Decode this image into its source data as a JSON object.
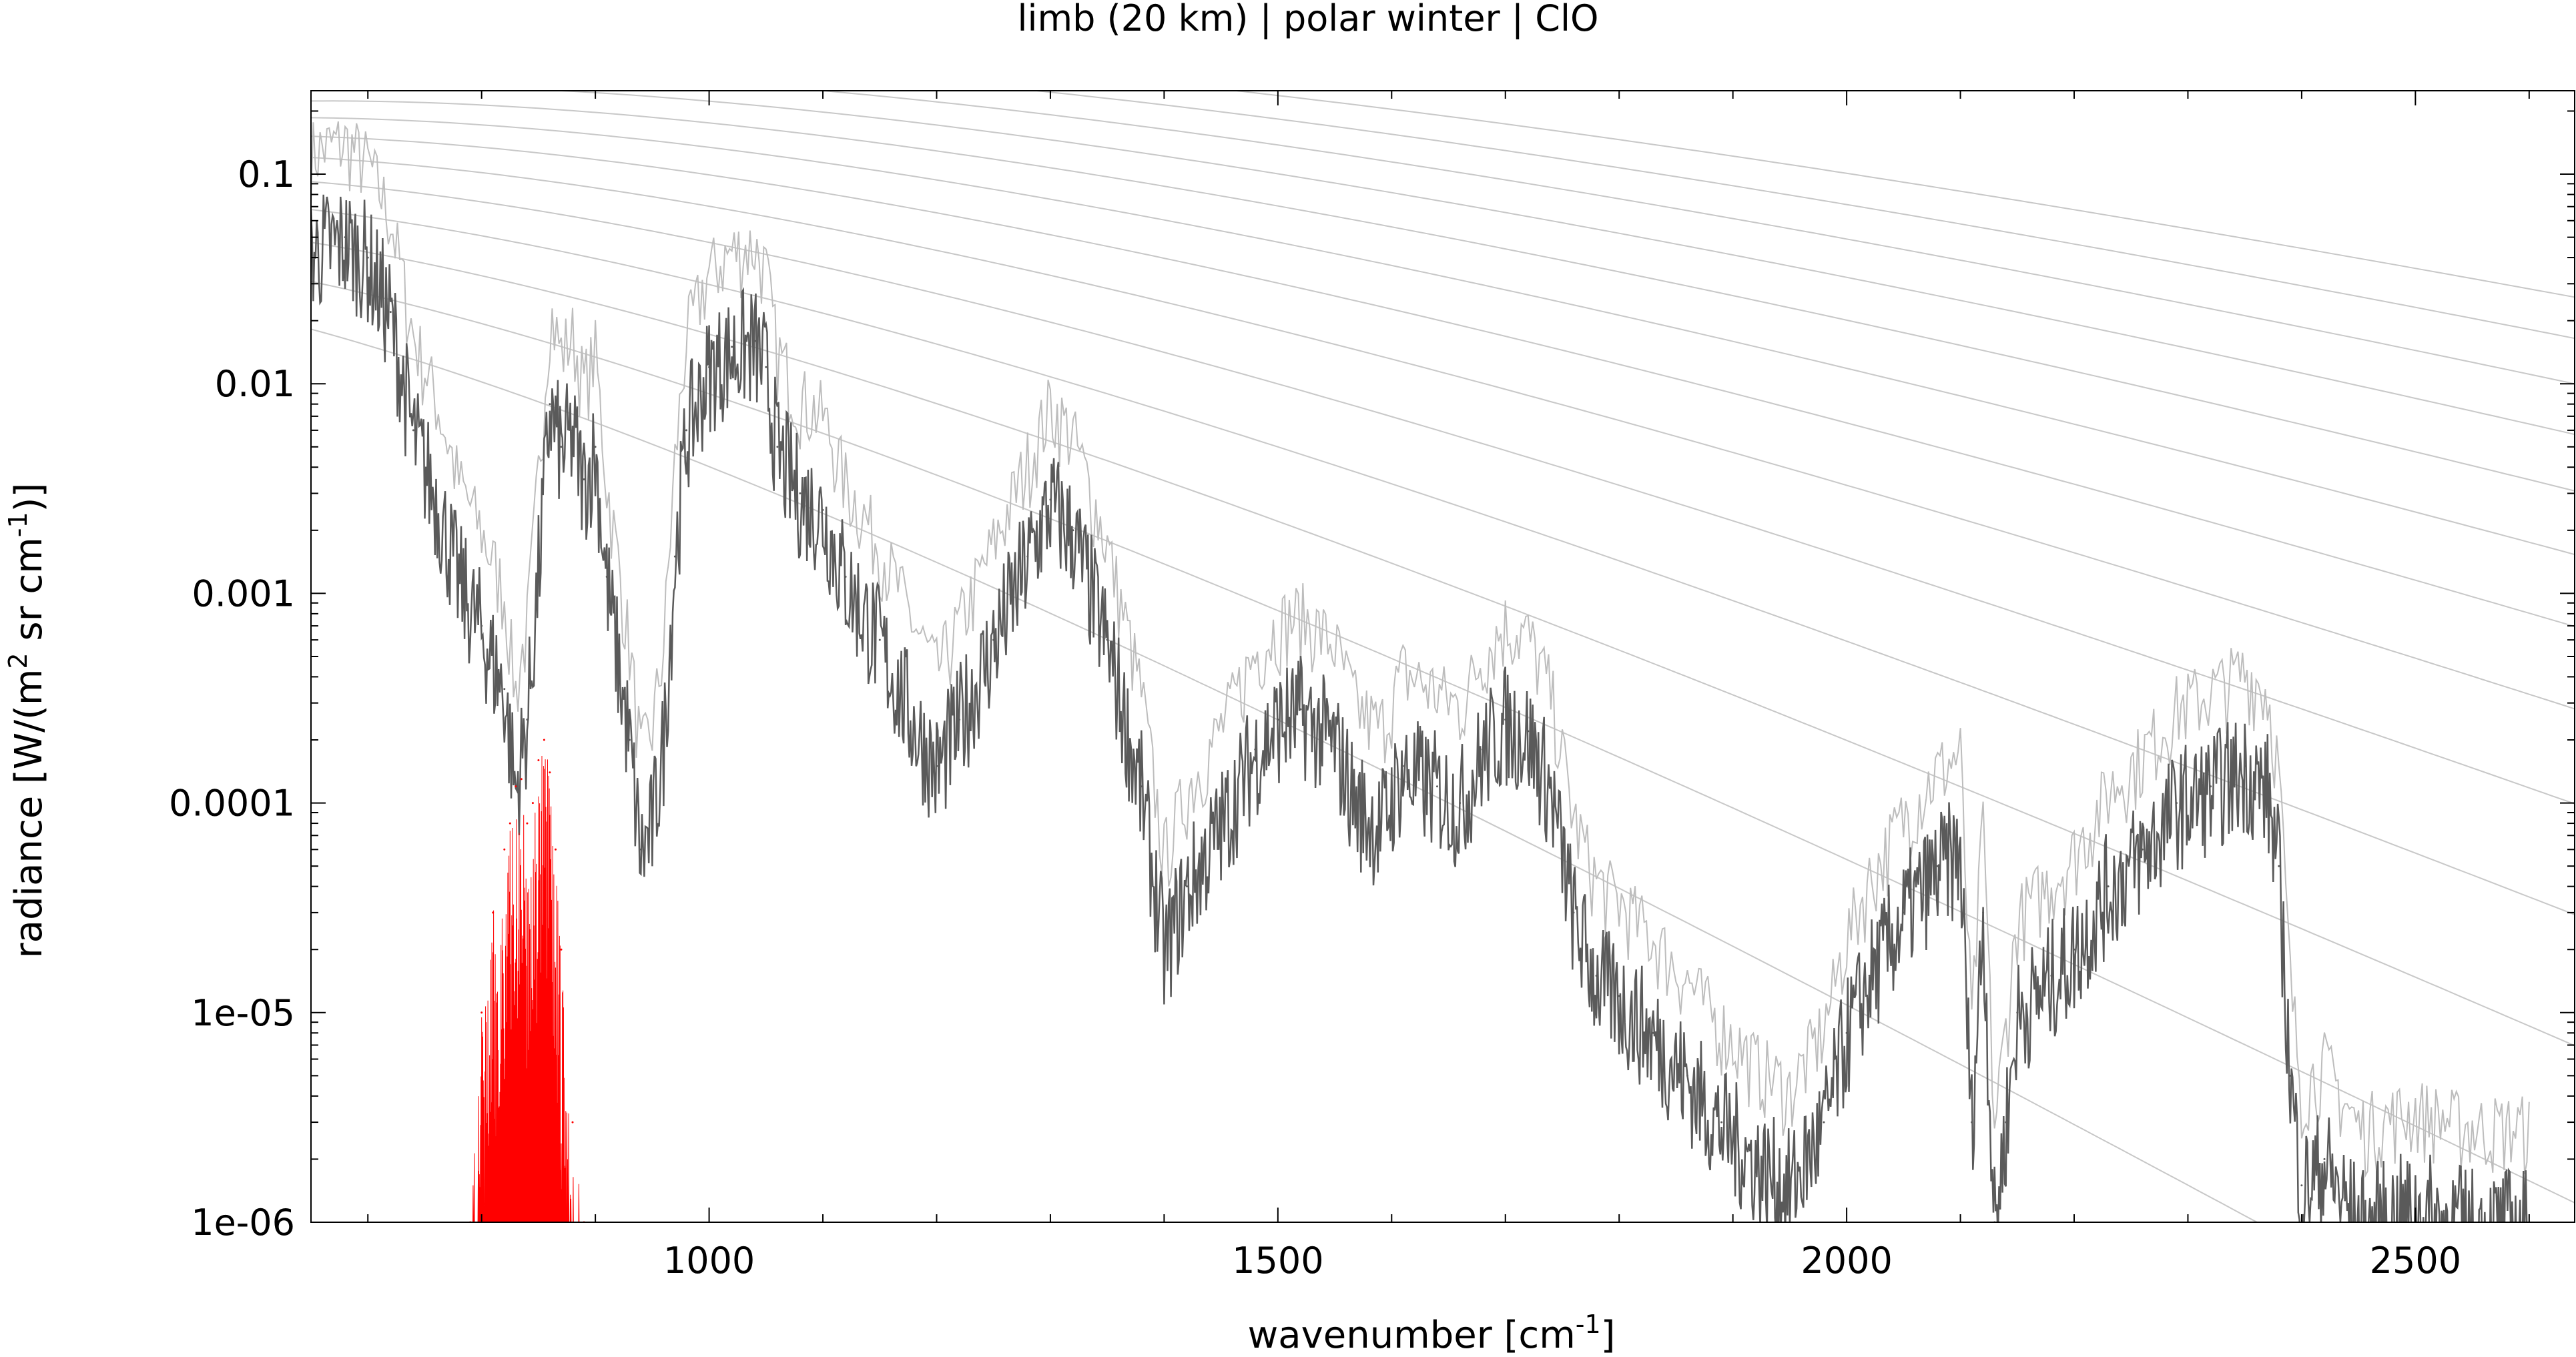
{
  "chart_data": {
    "type": "line",
    "title": "limb (20 km) | polar winter | ClO",
    "xlabel": "wavenumber [cm⁻¹]",
    "ylabel": "radiance [W/(m² sr cm⁻¹)]",
    "xlim": [
      650,
      2640
    ],
    "ylim": [
      1e-06,
      0.25
    ],
    "y_scale": "log",
    "grid": false,
    "x_ticks": [
      1000,
      1500,
      2000,
      2500
    ],
    "x_tick_labels": [
      "1000",
      "1500",
      "2000",
      "2500"
    ],
    "y_ticks": [
      0.1,
      0.01,
      0.001,
      0.0001,
      1e-05,
      1e-06
    ],
    "y_tick_labels": [
      "0.1",
      "0.01",
      "0.001",
      "0.0001",
      "1e-05",
      "1e-06"
    ],
    "colors": {
      "total_radiance": "#5a5a5a",
      "total_radiance_light": "#bdbdbd",
      "clo_contribution": "#ff0000",
      "planck_curves": "#c8c8c8"
    },
    "planck_temperatures_K": [
      180,
      200,
      220,
      240,
      260,
      280,
      300,
      320,
      340,
      360,
      380,
      400,
      420
    ],
    "series": [
      {
        "role": "total_radiance",
        "x": [
          650,
          680,
          700,
          720,
          740,
          760,
          780,
          800,
          820,
          830,
          840,
          850,
          860,
          870,
          880,
          890,
          900,
          910,
          920,
          930,
          940,
          950,
          960,
          970,
          980,
          1000,
          1020,
          1040,
          1050,
          1060,
          1080,
          1100,
          1120,
          1150,
          1180,
          1200,
          1220,
          1250,
          1280,
          1300,
          1320,
          1350,
          1380,
          1400,
          1420,
          1450,
          1480,
          1500,
          1520,
          1550,
          1570,
          1590,
          1610,
          1640,
          1660,
          1680,
          1700,
          1720,
          1740,
          1760,
          1780,
          1800,
          1830,
          1860,
          1890,
          1920,
          1950,
          1980,
          2000,
          2020,
          2050,
          2080,
          2100,
          2110,
          2120,
          2130,
          2140,
          2150,
          2180,
          2200,
          2230,
          2260,
          2290,
          2320,
          2350,
          2370,
          2380,
          2390,
          2400,
          2420,
          2450,
          2500,
          2550,
          2600
        ],
        "y": [
          0.045,
          0.05,
          0.04,
          0.022,
          0.006,
          0.003,
          0.0012,
          0.0007,
          0.00035,
          0.00012,
          0.00025,
          0.0013,
          0.008,
          0.005,
          0.006,
          0.0035,
          0.005,
          0.0012,
          0.0005,
          0.0002,
          6e-05,
          8e-05,
          0.0002,
          0.0015,
          0.006,
          0.012,
          0.015,
          0.016,
          0.012,
          0.005,
          0.003,
          0.0025,
          0.0012,
          0.0006,
          0.00025,
          0.00015,
          0.00025,
          0.0006,
          0.0015,
          0.0028,
          0.002,
          0.0006,
          0.00012,
          2e-05,
          4e-05,
          8e-05,
          0.00018,
          0.00025,
          0.00028,
          0.0002,
          0.0001,
          8e-05,
          0.00015,
          0.00012,
          0.0001,
          0.00018,
          0.00025,
          0.00022,
          0.00012,
          3e-05,
          1.5e-05,
          1.2e-05,
          8e-06,
          5e-06,
          3e-06,
          2e-06,
          1.5e-06,
          3e-06,
          8e-06,
          1.5e-05,
          3e-05,
          5e-05,
          6e-05,
          3e-06,
          3e-05,
          1e-06,
          3e-06,
          1e-05,
          1.5e-05,
          2e-05,
          4e-05,
          6e-05,
          0.0001,
          0.00012,
          0.00015,
          0.00012,
          5e-05,
          5e-06,
          1.5e-06,
          2e-06,
          1e-06,
          1.2e-06,
          1e-06,
          1e-06
        ]
      },
      {
        "role": "clo_contribution",
        "x": [
          790,
          800,
          810,
          820,
          825,
          830,
          835,
          840,
          845,
          850,
          855,
          860,
          865,
          870,
          880,
          890
        ],
        "y": [
          1e-06,
          1e-05,
          3e-05,
          6e-05,
          8e-05,
          0.00012,
          0.00013,
          8e-05,
          0.0001,
          0.00016,
          0.0002,
          0.00014,
          6e-05,
          2e-05,
          3e-06,
          1e-06
        ]
      }
    ]
  }
}
